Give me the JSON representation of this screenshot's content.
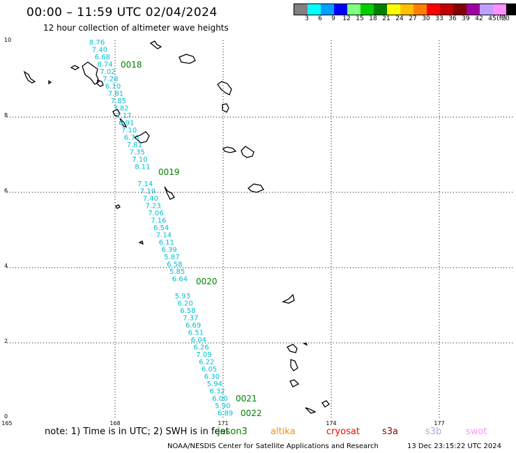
{
  "header": {
    "title": "00:00 – 11:59 UTC 02/04/2024",
    "subtitle": "12 hour collection of altimeter wave heights"
  },
  "legend": {
    "colors": [
      "#808080",
      "#00ffff",
      "#00a0ff",
      "#0000ff",
      "#80ff80",
      "#00d000",
      "#008000",
      "#ffff00",
      "#ffc000",
      "#ff8000",
      "#ff0000",
      "#c00000",
      "#800000",
      "#a000a0",
      "#c0a0ff",
      "#ff90ff",
      "#000000"
    ],
    "labels": [
      "3",
      "6",
      "9",
      "12",
      "15",
      "18",
      "21",
      "24",
      "27",
      "30",
      "33",
      "36",
      "39",
      "42",
      "45",
      "70"
    ],
    "unit": "(ft)"
  },
  "axes": {
    "lon_labels": [
      "165",
      "168",
      "171",
      "174",
      "177"
    ],
    "lat_labels": [
      "10",
      "8",
      "6",
      "4",
      "2",
      "0"
    ]
  },
  "track": {
    "color": "#00bcd4",
    "wave_heights": [
      "8.76",
      "7.40",
      "6.68",
      "8.74",
      "7.02",
      "7.28",
      "6.10",
      "7.81",
      "7.85",
      "7.82",
      "7.17",
      "6.91",
      "7.10",
      "6.73",
      "7.81",
      "7.35",
      "7.10",
      "8.11",
      "7.14",
      "7.19",
      "7.40",
      "7.23",
      "7.06",
      "7.16",
      "6.54",
      "7.14",
      "6.11",
      "6.39",
      "5.87",
      "6.58",
      "5.85",
      "6.64",
      "5.93",
      "6.20",
      "6.58",
      "7.37",
      "6.69",
      "6.51",
      "6.04",
      "6.26",
      "7.09",
      "6.22",
      "6.05",
      "6.30",
      "5.94",
      "6.32",
      "6.00",
      "5.90",
      "6.89"
    ],
    "pass_ids": [
      "0018",
      "0019",
      "0020",
      "0021",
      "0022"
    ]
  },
  "footer": {
    "note": "note:  1) Time is in UTC; 2) SWH is in feet",
    "satellites": [
      {
        "name": "jason3",
        "color": "#008000"
      },
      {
        "name": "altika",
        "color": "#ff8c00"
      },
      {
        "name": "cryosat",
        "color": "#ff0000"
      },
      {
        "name": "s3a",
        "color": "#8b0000"
      },
      {
        "name": "s3b",
        "color": "#b0a0e0"
      },
      {
        "name": "swot",
        "color": "#ff90ff"
      }
    ],
    "credit": "NOAA/NESDIS Center for Satellite Applications and Research",
    "timestamp": "13 Dec 23:15:22 UTC 2024"
  }
}
